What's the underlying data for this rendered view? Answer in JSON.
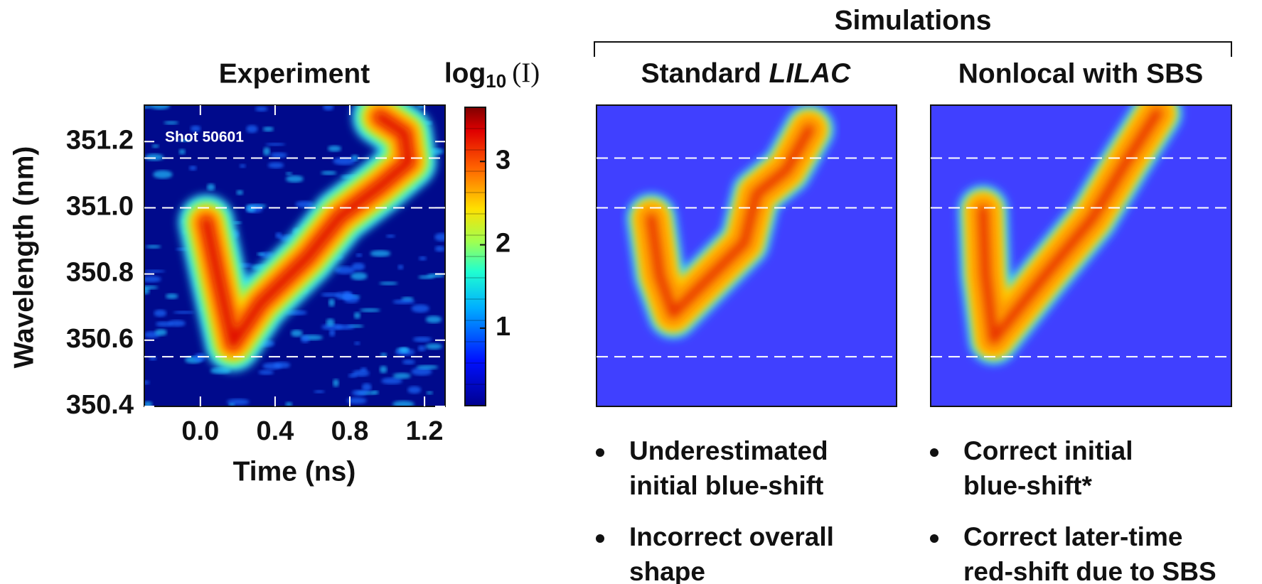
{
  "figure_title": "Simulations",
  "chart_data": [
    {
      "type": "heatmap",
      "title": "Experiment",
      "annotation": "Shot 50601",
      "xlabel": "Time (ns)",
      "ylabel": "Wavelength (nm)",
      "xlim": [
        -0.3,
        1.31
      ],
      "ylim": [
        350.4,
        351.31
      ],
      "xticks": [
        {
          "value": 0,
          "label": "0.0"
        },
        0.4,
        0.8,
        1.2
      ],
      "yticks": [
        350.4,
        350.6,
        350.8,
        {
          "value": 351,
          "label": "351.0"
        },
        351.2
      ],
      "reference_lines": [
        350.55,
        351,
        351.15
      ],
      "colorbar": {
        "title": "log",
        "title_subscript": "10",
        "title_argument": "(I)",
        "lim": [
          0.07,
          3.65
        ],
        "ticks": [
          1,
          2,
          3
        ]
      }
    },
    {
      "type": "heatmap",
      "title": "Standard",
      "title_emphasis": "LILAC",
      "ylim": [
        350.4,
        351.31
      ],
      "reference_lines": [
        350.55,
        351,
        351.15
      ],
      "notes": [
        [
          "Underestimated",
          "initial blue-shift"
        ],
        [
          "Incorrect overall",
          "shape"
        ]
      ]
    },
    {
      "type": "heatmap",
      "title": "Nonlocal with SBS",
      "ylim": [
        350.4,
        351.31
      ],
      "reference_lines": [
        350.55,
        351,
        351.15
      ],
      "notes": [
        [
          "Correct initial",
          "blue-shift*"
        ],
        [
          "Correct later-time",
          "red-shift due to SBS"
        ]
      ]
    }
  ]
}
